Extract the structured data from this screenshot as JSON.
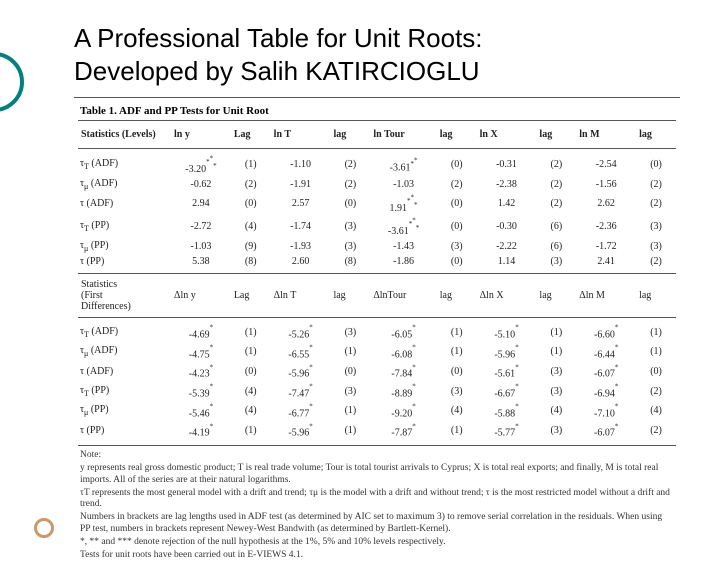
{
  "title_line1": "A Professional Table for Unit Roots:",
  "title_line2": "Developed by Salih KATIRCIOGLU",
  "table_caption": "Table 1. ADF and PP Tests for Unit Root",
  "levels_header": {
    "c0": "Statistics (Levels)",
    "c1": "ln y",
    "c2": "Lag",
    "c3": "ln T",
    "c4": "lag",
    "c5": "ln Tour",
    "c6": "lag",
    "c7": "ln X",
    "c8": "lag",
    "c9": "ln M",
    "c10": "lag"
  },
  "levels_rows": [
    {
      "s": "τT (ADF)",
      "v1": "-3.20***",
      "l1": "(1)",
      "v2": "-1.10",
      "l2": "(2)",
      "v3": "-3.61**",
      "l3": "(0)",
      "v4": "-0.31",
      "l4": "(2)",
      "v5": "-2.54",
      "l5": "(0)"
    },
    {
      "s": "τμ (ADF)",
      "v1": "-0.62",
      "l1": "(2)",
      "v2": "-1.91",
      "l2": "(2)",
      "v3": "-1.03",
      "l3": "(2)",
      "v4": "-2.38",
      "l4": "(2)",
      "v5": "-1.56",
      "l5": "(2)"
    },
    {
      "s": "τ (ADF)",
      "v1": "2.94",
      "l1": "(0)",
      "v2": "2.57",
      "l2": "(0)",
      "v3": "1.91***",
      "l3": "(0)",
      "v4": "1.42",
      "l4": "(2)",
      "v5": "2.62",
      "l5": "(2)"
    },
    {
      "s": "τT (PP)",
      "v1": "-2.72",
      "l1": "(4)",
      "v2": "-1.74",
      "l2": "(3)",
      "v3": "-3.61***",
      "l3": "(0)",
      "v4": "-0.30",
      "l4": "(6)",
      "v5": "-2.36",
      "l5": "(3)"
    },
    {
      "s": "τμ (PP)",
      "v1": "-1.03",
      "l1": "(9)",
      "v2": "-1.93",
      "l2": "(3)",
      "v3": "-1.43",
      "l3": "(3)",
      "v4": "-2.22",
      "l4": "(6)",
      "v5": "-1.72",
      "l5": "(3)"
    },
    {
      "s": "τ (PP)",
      "v1": "5.38",
      "l1": "(8)",
      "v2": "2.60",
      "l2": "(8)",
      "v3": "-1.86",
      "l3": "(0)",
      "v4": "1.14",
      "l4": "(3)",
      "v5": "2.41",
      "l5": "(2)"
    }
  ],
  "diffs_header": {
    "c0_l1": "Statistics",
    "c0_l2": "(First",
    "c0_l3": "Differences)",
    "c1": "Δln y",
    "c2": "Lag",
    "c3": "Δln T",
    "c4": "lag",
    "c5": "ΔlnTour",
    "c6": "lag",
    "c7": "Δln X",
    "c8": "lag",
    "c9": "Δln M",
    "c10": "lag"
  },
  "diffs_rows": [
    {
      "s": "τT (ADF)",
      "v1": "-4.69*",
      "l1": "(1)",
      "v2": "-5.26*",
      "l2": "(3)",
      "v3": "-6.05*",
      "l3": "(1)",
      "v4": "-5.10*",
      "l4": "(1)",
      "v5": "-6.60*",
      "l5": "(1)"
    },
    {
      "s": "τμ (ADF)",
      "v1": "-4.75*",
      "l1": "(1)",
      "v2": "-6.55*",
      "l2": "(1)",
      "v3": "-6.08*",
      "l3": "(1)",
      "v4": "-5.96*",
      "l4": "(1)",
      "v5": "-6.44*",
      "l5": "(1)"
    },
    {
      "s": "τ (ADF)",
      "v1": "-4.23*",
      "l1": "(0)",
      "v2": "-5.96*",
      "l2": "(0)",
      "v3": "-7.84*",
      "l3": "(0)",
      "v4": "-5.61*",
      "l4": "(3)",
      "v5": "-6.07*",
      "l5": "(0)"
    },
    {
      "s": "τT (PP)",
      "v1": "-5.39*",
      "l1": "(4)",
      "v2": "-7.47*",
      "l2": "(3)",
      "v3": "-8.89*",
      "l3": "(3)",
      "v4": "-6.67*",
      "l4": "(3)",
      "v5": "-6.94*",
      "l5": "(2)"
    },
    {
      "s": "τμ (PP)",
      "v1": "-5.46*",
      "l1": "(4)",
      "v2": "-6.77*",
      "l2": "(1)",
      "v3": "-9.20*",
      "l3": "(4)",
      "v4": "-5.88*",
      "l4": "(4)",
      "v5": "-7.10*",
      "l5": "(4)"
    },
    {
      "s": "τ (PP)",
      "v1": "-4.19*",
      "l1": "(1)",
      "v2": "-5.96*",
      "l2": "(1)",
      "v3": "-7.87*",
      "l3": "(1)",
      "v4": "-5.77*",
      "l4": "(3)",
      "v5": "-6.07*",
      "l5": "(2)"
    }
  ],
  "note": {
    "label": "Note:",
    "p1": "y represents real gross domestic product; T is real trade volume; Tour is total tourist arrivals to Cyprus; X is total real exports; and finally, M is total real imports. All of the series are at their natural logarithms.",
    "p2": "τT represents the most general model with a drift and trend; τμ is the model with a drift and without trend; τ is the most restricted model without a drift and trend.",
    "p3": "Numbers in brackets are lag lengths used in ADF test (as determined by AIC set to maximum 3) to remove serial correlation in the residuals. When using PP test, numbers in brackets represent Newey-West Bandwith (as determined by Bartlett-Kernel).",
    "p4": "*, ** and *** denote rejection of the null hypothesis at the 1%, 5% and 10% levels respectively.",
    "p5": "Tests for unit roots have been carried out in E-VIEWS 4.1."
  },
  "colors": {
    "accent_teal": "#008080",
    "accent_tan": "#cc9966",
    "text": "#000000",
    "rule": "#555555"
  }
}
